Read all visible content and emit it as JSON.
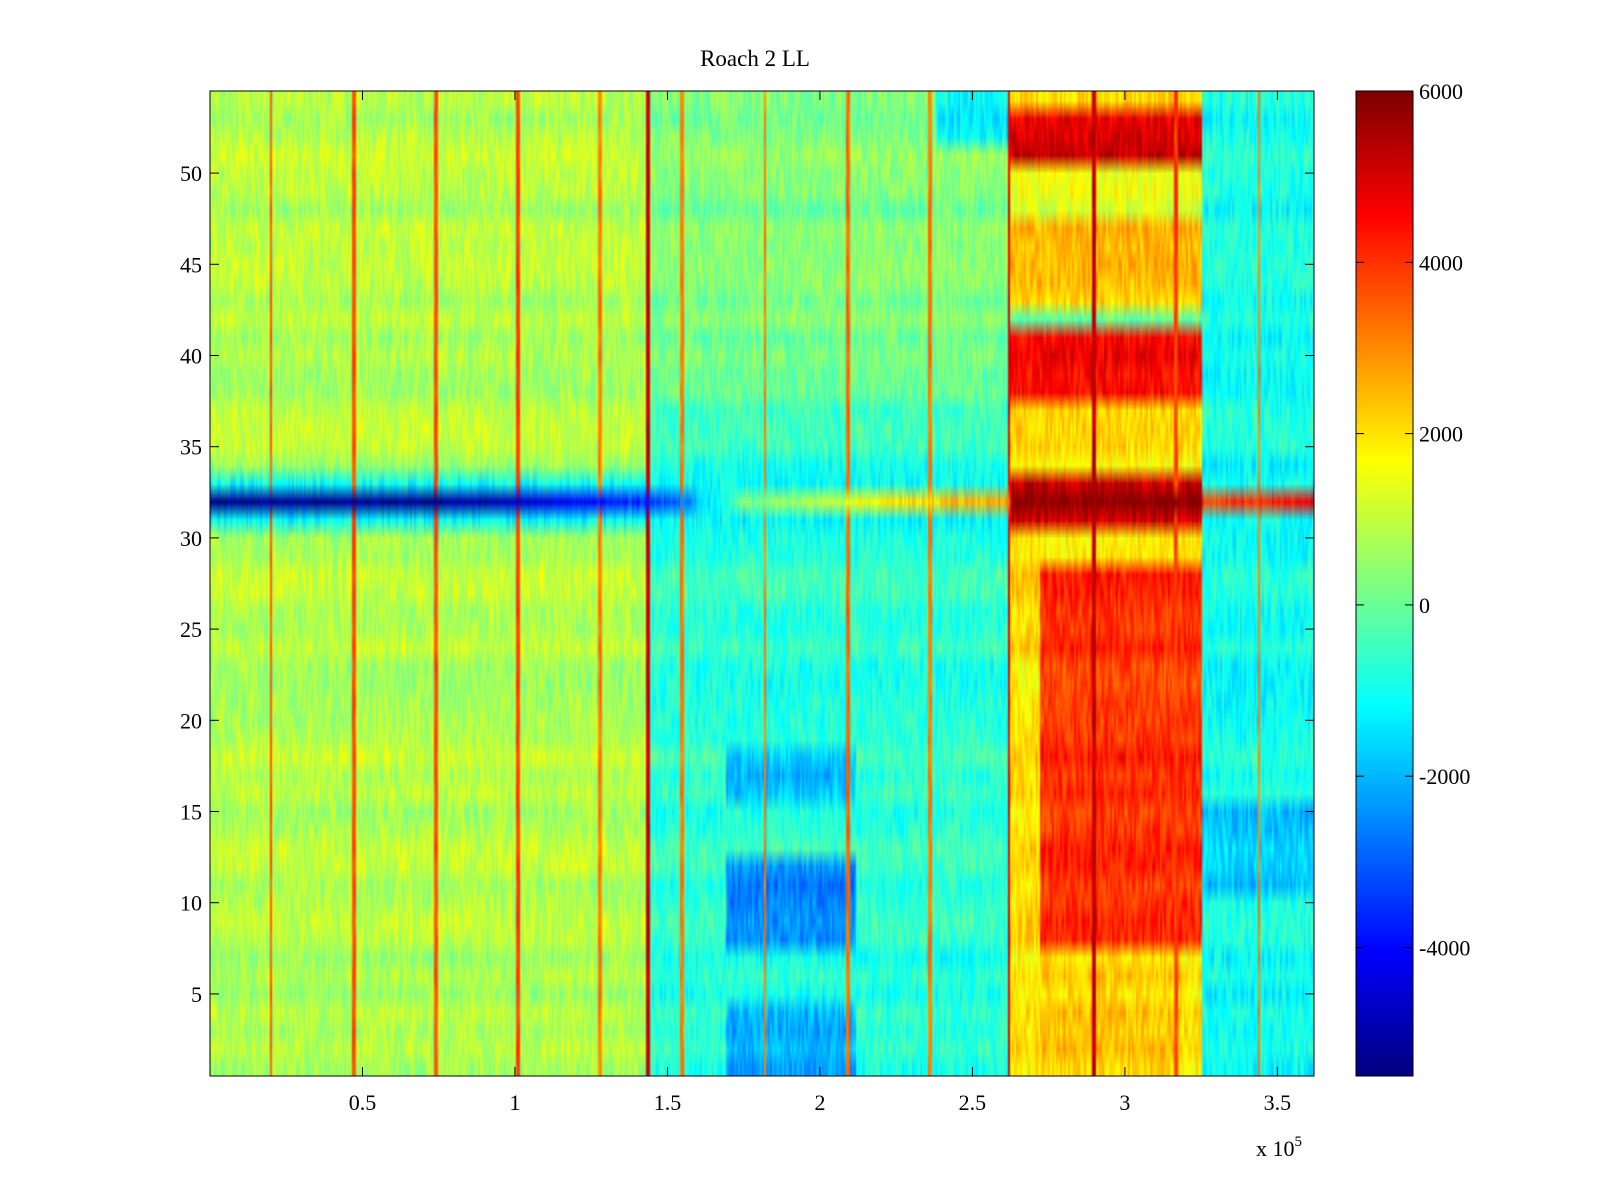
{
  "chart_data": {
    "type": "heatmap",
    "title": "Roach 2 LL",
    "xlabel": "",
    "ylabel": "",
    "x_multiplier_label": "x 10",
    "x_multiplier_exponent": "5",
    "x_range": [
      0,
      362000
    ],
    "y_range": [
      0.5,
      54.5
    ],
    "rows": 54,
    "x_ticks": [
      {
        "value": 50000,
        "label": "0.5"
      },
      {
        "value": 100000,
        "label": "1"
      },
      {
        "value": 150000,
        "label": "1.5"
      },
      {
        "value": 200000,
        "label": "2"
      },
      {
        "value": 250000,
        "label": "2.5"
      },
      {
        "value": 300000,
        "label": "3"
      },
      {
        "value": 350000,
        "label": "3.5"
      }
    ],
    "y_ticks": [
      {
        "value": 5,
        "label": "5"
      },
      {
        "value": 10,
        "label": "10"
      },
      {
        "value": 15,
        "label": "15"
      },
      {
        "value": 20,
        "label": "20"
      },
      {
        "value": 25,
        "label": "25"
      },
      {
        "value": 30,
        "label": "30"
      },
      {
        "value": 35,
        "label": "35"
      },
      {
        "value": 40,
        "label": "40"
      },
      {
        "value": 45,
        "label": "45"
      },
      {
        "value": 50,
        "label": "50"
      }
    ],
    "colorbar": {
      "colormap": "jet",
      "range": [
        -5500,
        6000
      ],
      "ticks": [
        {
          "value": -4000,
          "label": "-4000"
        },
        {
          "value": -2000,
          "label": "-2000"
        },
        {
          "value": 0,
          "label": "0"
        },
        {
          "value": 2000,
          "label": "2000"
        },
        {
          "value": 4000,
          "label": "4000"
        },
        {
          "value": 6000,
          "label": "6000"
        }
      ]
    },
    "segments": [
      {
        "x": [
          0,
          143000
        ],
        "value": 800
      },
      {
        "x": [
          143000,
          262000
        ],
        "value": -700
      },
      {
        "x": [
          262000,
          325000
        ],
        "value": 2000
      },
      {
        "x": [
          325000,
          362000
        ],
        "value": -1000
      }
    ],
    "regions": [
      {
        "x": [
          262000,
          325000
        ],
        "rows": [
          51,
          53
        ],
        "value": 4900
      },
      {
        "x": [
          262000,
          325000
        ],
        "rows": [
          38,
          41
        ],
        "value": 4700
      },
      {
        "x": [
          262000,
          325000
        ],
        "rows": [
          31,
          33
        ],
        "value": 5200
      },
      {
        "x": [
          272000,
          325000
        ],
        "rows": [
          8,
          28
        ],
        "value": 4000
      },
      {
        "x": [
          272000,
          318000
        ],
        "rows": [
          1,
          7
        ],
        "value": 2300
      },
      {
        "x": [
          262000,
          325000
        ],
        "rows": [
          43,
          47
        ],
        "value": 2300
      },
      {
        "x": [
          262000,
          325000
        ],
        "rows": [
          34,
          37
        ],
        "value": 1900
      },
      {
        "x": [
          262000,
          325000
        ],
        "rows": [
          42,
          42
        ],
        "value": -400
      },
      {
        "x": [
          262000,
          325000
        ],
        "rows": [
          48,
          50
        ],
        "value": 1400
      },
      {
        "x": [
          169000,
          212000
        ],
        "rows": [
          8,
          12
        ],
        "value": -2600
      },
      {
        "x": [
          169000,
          212000
        ],
        "rows": [
          1,
          4
        ],
        "value": -2100
      },
      {
        "x": [
          169000,
          212000
        ],
        "rows": [
          16,
          18
        ],
        "value": -2000
      },
      {
        "x": [
          325000,
          362000
        ],
        "rows": [
          11,
          15
        ],
        "value": -1800
      },
      {
        "x": [
          143000,
          262000
        ],
        "rows": [
          38,
          54
        ],
        "value": 200
      },
      {
        "x": [
          238000,
          262000
        ],
        "rows": [
          52,
          54
        ],
        "value": -1300
      }
    ],
    "band_row": {
      "row": 32,
      "points": [
        {
          "x": 0,
          "value": -5400
        },
        {
          "x": 75000,
          "value": -5300
        },
        {
          "x": 100000,
          "value": -4800
        },
        {
          "x": 150000,
          "value": -3300
        },
        {
          "x": 175000,
          "value": 0
        },
        {
          "x": 220000,
          "value": 1800
        },
        {
          "x": 262000,
          "value": 2800
        },
        {
          "x": 263000,
          "value": 5900
        },
        {
          "x": 325000,
          "value": 5900
        },
        {
          "x": 326000,
          "value": 3800
        },
        {
          "x": 362000,
          "value": 4700
        }
      ]
    },
    "row_31_33_value": -1100,
    "vertical_lines": [
      {
        "x": 20000,
        "value": 4000
      },
      {
        "x": 47000,
        "value": 4000
      },
      {
        "x": 74000,
        "value": 4000
      },
      {
        "x": 101000,
        "value": 4200
      },
      {
        "x": 128000,
        "value": 3500
      },
      {
        "x": 143500,
        "value": 5500
      },
      {
        "x": 155000,
        "value": 3500
      },
      {
        "x": 182000,
        "value": 3500
      },
      {
        "x": 209000,
        "value": 3700
      },
      {
        "x": 236000,
        "value": 3500
      },
      {
        "x": 262000,
        "value": 5200
      },
      {
        "x": 290000,
        "value": 5600
      },
      {
        "x": 317000,
        "value": 4200
      },
      {
        "x": 344000,
        "value": 3500
      }
    ]
  }
}
